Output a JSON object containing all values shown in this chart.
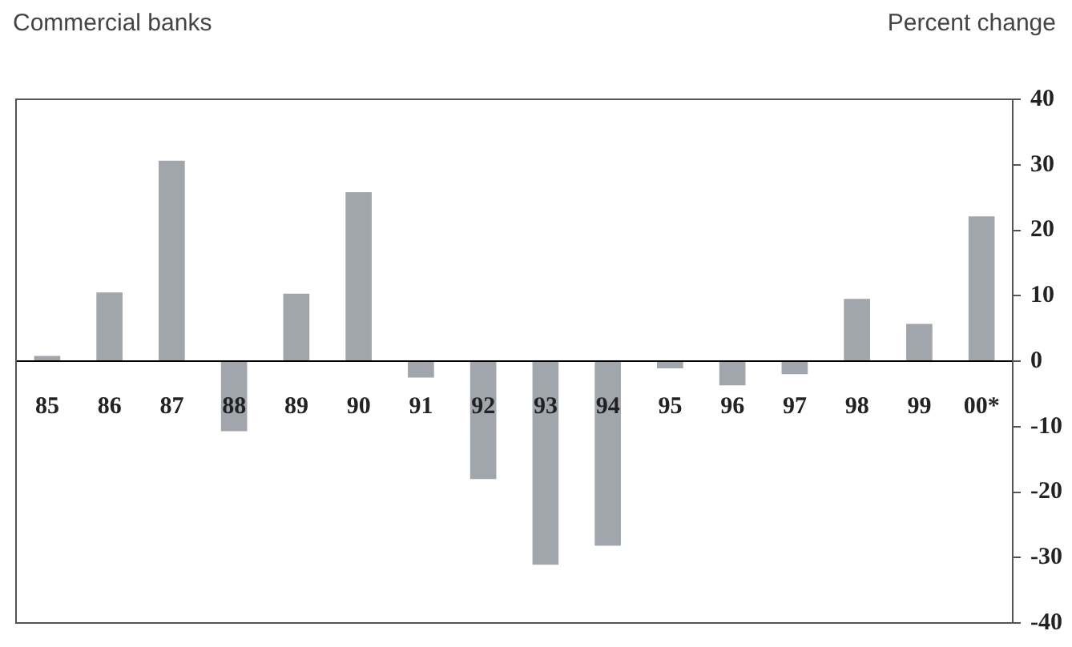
{
  "chart_data": {
    "type": "bar",
    "title": "Commercial banks",
    "ylabel": "Percent change",
    "categories": [
      "85",
      "86",
      "87",
      "88",
      "89",
      "90",
      "91",
      "92",
      "93",
      "94",
      "95",
      "96",
      "97",
      "98",
      "99",
      "00*"
    ],
    "values": [
      0.8,
      10.5,
      30.6,
      -10.7,
      10.3,
      25.8,
      -2.5,
      -18.0,
      -31.1,
      -28.2,
      -1.1,
      -3.7,
      -2.0,
      9.5,
      5.7,
      22.1
    ],
    "color": "#a0a6ab",
    "ylim": [
      -40,
      40
    ],
    "yticks": [
      -40,
      -30,
      -20,
      -10,
      0,
      10,
      20,
      30,
      40
    ],
    "grid": false,
    "legend": false
  }
}
